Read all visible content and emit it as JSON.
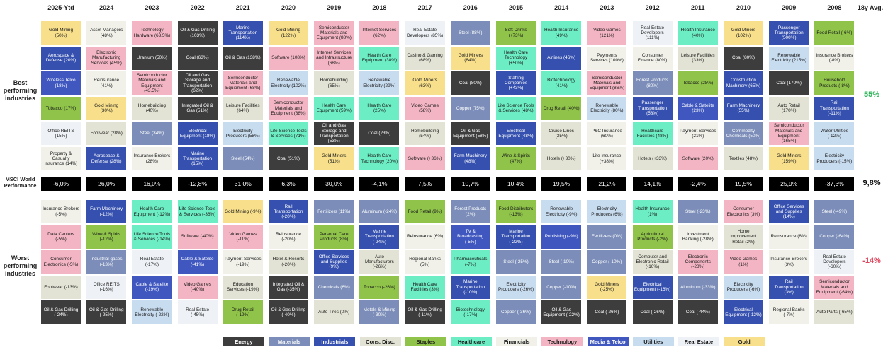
{
  "chart_data": {
    "type": "table",
    "columns": [
      "2025-Ytd",
      "2024",
      "2023",
      "2022",
      "2021",
      "2020",
      "2019",
      "2018",
      "2017",
      "2016",
      "2015",
      "2014",
      "2013",
      "2012",
      "2011",
      "2010",
      "2009",
      "2008"
    ],
    "avg_header": "18y Avg.",
    "row_labels": {
      "best": "Best performing industries",
      "msci": "MSCI World Performance",
      "worst": "Worst performing industries"
    },
    "averages": {
      "best": "55%",
      "msci": "9,8%",
      "worst": "-14%"
    },
    "colors": {
      "Energy": "#3d3d3d",
      "Materials": "#7b8db8",
      "Industrials": "#3550ae",
      "Cons. Disc.": "#e2e3d4",
      "Staples": "#8fc34a",
      "Healthcare": "#6dedc3",
      "Financials": "#f1f1ea",
      "Technology": "#f3b5c4",
      "Media & Telco": "#3f57bf",
      "Utilities": "#c8dcf0",
      "Real Estate": "#eef2f7",
      "Gold": "#f7df8b",
      "MSCI": "#000000"
    },
    "legend": [
      "Energy",
      "Materials",
      "Industrials",
      "Cons. Disc.",
      "Staples",
      "Healthcare",
      "Financials",
      "Technology",
      "Media & Telco",
      "Utilities",
      "Real Estate",
      "Gold"
    ],
    "msci": [
      "-6,0%",
      "26,0%",
      "16,0%",
      "-12,8%",
      "31,0%",
      "6,3%",
      "30,0%",
      "-4,1%",
      "7,5%",
      "10,7%",
      "10,4%",
      "19,5%",
      "21,2%",
      "14,1%",
      "-2,4%",
      "19,5%",
      "25,9%",
      "-37,3%"
    ],
    "best": [
      [
        [
          "Gold Mining (50%)",
          "Gold"
        ],
        [
          "Aerospace & Defense (20%)",
          "Industrials"
        ],
        [
          "Wireless Telco (18%)",
          "Media & Telco"
        ],
        [
          "Tobacco (17%)",
          "Staples"
        ],
        [
          "Office REITS (15%)",
          "Real Estate"
        ],
        [
          "Property & Casualty Insurance (14%)",
          "Financials"
        ]
      ],
      [
        [
          "Asset Managers (48%)",
          "Financials"
        ],
        [
          "Electronic Manufacturing Services (45%)",
          "Technology"
        ],
        [
          "Reinsurance (41%)",
          "Financials"
        ],
        [
          "Gold Mining (30%)",
          "Gold"
        ],
        [
          "Footwear (28%)",
          "Cons. Disc."
        ],
        [
          "Aerospace & Defense (28%)",
          "Industrials"
        ]
      ],
      [
        [
          "Technology Hardware (63.5%)",
          "Technology"
        ],
        [
          "Uranium (50%)",
          "Energy"
        ],
        [
          "Semiconductor Materials and Equipment (43.5%)",
          "Technology"
        ],
        [
          "Homebuilding (40%)",
          "Cons. Disc."
        ],
        [
          "Steel (34%)",
          "Materials"
        ],
        [
          "Insurance Brokers (28%)",
          "Financials"
        ]
      ],
      [
        [
          "Oil & Gas Drilling (103%)",
          "Energy"
        ],
        [
          "Coal (63%)",
          "Energy"
        ],
        [
          "Oil and Gas Storage and Transportation (62%)",
          "Energy"
        ],
        [
          "Integrated Oil & Gas (51%)",
          "Energy"
        ],
        [
          "Electrical Equipment (18%)",
          "Industrials"
        ],
        [
          "Marine Transportation (15%)",
          "Industrials"
        ]
      ],
      [
        [
          "Marine Transportation (114%)",
          "Industrials"
        ],
        [
          "Oil & Gas (138%)",
          "Energy"
        ],
        [
          "Semiconductor Materials and Equipment (68%)",
          "Technology"
        ],
        [
          "Leisure Facilities (64%)",
          "Cons. Disc."
        ],
        [
          "Electricity Producers (58%)",
          "Utilities"
        ],
        [
          "Steel (54%)",
          "Materials"
        ]
      ],
      [
        [
          "Gold Mining (122%)",
          "Gold"
        ],
        [
          "Software (108%)",
          "Technology"
        ],
        [
          "Renewable Electricity (102%)",
          "Utilities"
        ],
        [
          "Semiconductor Materials and Equipment (88%)",
          "Technology"
        ],
        [
          "Life Science Tools & Services (71%)",
          "Healthcare"
        ],
        [
          "Coal (51%)",
          "Energy"
        ]
      ],
      [
        [
          "Semiconductor Materials and Equipment (88%)",
          "Technology"
        ],
        [
          "Internet Services and Infrastructure (68%)",
          "Technology"
        ],
        [
          "Homebuilding (65%)",
          "Cons. Disc."
        ],
        [
          "Health Care Equipment (59%)",
          "Healthcare"
        ],
        [
          "Oil and Gas Storage and Transportation (53%)",
          "Energy"
        ],
        [
          "Gold Miners (51%)",
          "Gold"
        ]
      ],
      [
        [
          "Internet Services (62%)",
          "Technology"
        ],
        [
          "Health Care Equipment (38%)",
          "Healthcare"
        ],
        [
          "Renewable Electricity (29%)",
          "Utilities"
        ],
        [
          "Health Care (25%)",
          "Healthcare"
        ],
        [
          "Coal (23%)",
          "Energy"
        ],
        [
          "Health Care Technology (20%)",
          "Healthcare"
        ]
      ],
      [
        [
          "Real Estate Developers (85%)",
          "Real Estate"
        ],
        [
          "Casino & Gaming (68%)",
          "Cons. Disc."
        ],
        [
          "Gold Miners (63%)",
          "Gold"
        ],
        [
          "Video Games (58%)",
          "Technology"
        ],
        [
          "Homebuilding (54%)",
          "Cons. Disc."
        ],
        [
          "Software (+36%)",
          "Technology"
        ]
      ],
      [
        [
          "Steel (88%)",
          "Materials"
        ],
        [
          "Gold Miners (84%)",
          "Gold"
        ],
        [
          "Coal (80%)",
          "Energy"
        ],
        [
          "Copper (75%)",
          "Materials"
        ],
        [
          "Oil & Gas Equipment (58%)",
          "Energy"
        ],
        [
          "Farm Machinery (48%)",
          "Industrials"
        ]
      ],
      [
        [
          "Soft Drinks (+73%)",
          "Staples"
        ],
        [
          "Health Care Technology (+50%)",
          "Healthcare"
        ],
        [
          "Staffing Companies (+43%)",
          "Industrials"
        ],
        [
          "Life Science Tools & Services (48%)",
          "Healthcare"
        ],
        [
          "Electrical Equipment (48%)",
          "Industrials"
        ],
        [
          "Wine & Spirits (47%)",
          "Staples"
        ]
      ],
      [
        [
          "Health Insurance (49%)",
          "Healthcare"
        ],
        [
          "Airlines (46%)",
          "Industrials"
        ],
        [
          "Biotechnology (41%)",
          "Healthcare"
        ],
        [
          "Drug Retail (40%)",
          "Staples"
        ],
        [
          "Cruise Lines (35%)",
          "Cons. Disc."
        ],
        [
          "Hotels (+30%)",
          "Cons. Disc."
        ]
      ],
      [
        [
          "Video Games (121%)",
          "Technology"
        ],
        [
          "Payments Services (100%)",
          "Financials"
        ],
        [
          "Semiconductor Materials and Equipment (86%)",
          "Technology"
        ],
        [
          "Renewable Electricity (80%)",
          "Utilities"
        ],
        [
          "P&C Insurance (60%)",
          "Financials"
        ],
        [
          "Life Insurance (+38%)",
          "Financials"
        ]
      ],
      [
        [
          "Real Estate Developers (111%)",
          "Real Estate"
        ],
        [
          "Consumer Finance (80%)",
          "Financials"
        ],
        [
          "Forest Products (80%)",
          "Materials"
        ],
        [
          "Passenger Transportation (58%)",
          "Industrials"
        ],
        [
          "Healthcare Facilities (48%)",
          "Healthcare"
        ],
        [
          "Hotels (+33%)",
          "Cons. Disc."
        ]
      ],
      [
        [
          "Health Insurance (40%)",
          "Healthcare"
        ],
        [
          "Leisure Facilities (33%)",
          "Cons. Disc."
        ],
        [
          "Tobacco (28%)",
          "Staples"
        ],
        [
          "Cable & Satelite (23%)",
          "Media & Telco"
        ],
        [
          "Payment Services (21%)",
          "Financials"
        ],
        [
          "Software (20%)",
          "Technology"
        ]
      ],
      [
        [
          "Gold Miners (102%)",
          "Gold"
        ],
        [
          "Coal (80%)",
          "Energy"
        ],
        [
          "Construction Machinery (65%)",
          "Industrials"
        ],
        [
          "Farm Machinery (55%)",
          "Industrials"
        ],
        [
          "Commodity Chemicals (50%)",
          "Materials"
        ],
        [
          "Textiles (48%)",
          "Cons. Disc."
        ]
      ],
      [
        [
          "Passenger Transportation (500%)",
          "Industrials"
        ],
        [
          "Renewable Electricity (215%)",
          "Utilities"
        ],
        [
          "Coal (170%)",
          "Energy"
        ],
        [
          "Auto Retail (170%)",
          "Cons. Disc."
        ],
        [
          "Semiconductor Materials and Equipment (165%)",
          "Technology"
        ],
        [
          "Gold Miners (159%)",
          "Gold"
        ]
      ],
      [
        [
          "Food Retail (-6%)",
          "Staples"
        ],
        [
          "Insurance Brokers (-8%)",
          "Financials"
        ],
        [
          "Household Products (-8%)",
          "Staples"
        ],
        [
          "Rail Transportation (-11%)",
          "Industrials"
        ],
        [
          "Water Utilities (-12%)",
          "Utilities"
        ],
        [
          "Electricity Producers (-15%)",
          "Utilities"
        ]
      ]
    ],
    "worst": [
      [
        [
          "Insurance Brokers (-5%)",
          "Financials"
        ],
        [
          "Data Centers (-5%)",
          "Technology"
        ],
        [
          "Consumer Electronics (-5%)",
          "Technology"
        ],
        [
          "Footwear (-13%)",
          "Cons. Disc."
        ],
        [
          "Oil & Gas Drilling (-24%)",
          "Energy"
        ]
      ],
      [
        [
          "Farm Machinery (-12%)",
          "Industrials"
        ],
        [
          "Wine & Spirits (-12%)",
          "Staples"
        ],
        [
          "Industrial gases (-13%)",
          "Materials"
        ],
        [
          "Office REITS (-16%)",
          "Real Estate"
        ],
        [
          "Oil & Gas Drilling (-25%)",
          "Energy"
        ]
      ],
      [
        [
          "Health Care Equipment (-12%)",
          "Healthcare"
        ],
        [
          "Life Science Tools & Services (-14%)",
          "Healthcare"
        ],
        [
          "Real Estate (-17%)",
          "Real Estate"
        ],
        [
          "Cable & Satelite (-19%)",
          "Media & Telco"
        ],
        [
          "Renewable Electricity (-22%)",
          "Utilities"
        ]
      ],
      [
        [
          "Life Science Tools & Services (-36%)",
          "Healthcare"
        ],
        [
          "Software (-40%)",
          "Technology"
        ],
        [
          "Cable & Satelite (-41%)",
          "Media & Telco"
        ],
        [
          "Video Games (-40%)",
          "Technology"
        ],
        [
          "Real Estate (-45%)",
          "Real Estate"
        ]
      ],
      [
        [
          "Gold Mining (-9%)",
          "Gold"
        ],
        [
          "Video Games (-11%)",
          "Technology"
        ],
        [
          "Payment Services (-19%)",
          "Financials"
        ],
        [
          "Education Services (-19%)",
          "Cons. Disc."
        ],
        [
          "Drug Retail (-19%)",
          "Staples"
        ]
      ],
      [
        [
          "Rail Transportation (-20%)",
          "Industrials"
        ],
        [
          "Reinsurance (-20%)",
          "Financials"
        ],
        [
          "Hotel & Resorts (-20%)",
          "Cons. Disc."
        ],
        [
          "Integrated Oil & Gas (-35%)",
          "Energy"
        ],
        [
          "Oil & Gas Drilling (-40%)",
          "Energy"
        ]
      ],
      [
        [
          "Fertilizers (11%)",
          "Materials"
        ],
        [
          "Personal Care Products (8%)",
          "Staples"
        ],
        [
          "Office Services and Supplies (9%)",
          "Industrials"
        ],
        [
          "Chemicals (6%)",
          "Materials"
        ],
        [
          "Auto Tires (0%)",
          "Cons. Disc."
        ]
      ],
      [
        [
          "Aluminum (-24%)",
          "Materials"
        ],
        [
          "Marine Transportation (-24%)",
          "Industrials"
        ],
        [
          "Auto Manufacturers (-26%)",
          "Cons. Disc."
        ],
        [
          "Tobacco (-26%)",
          "Staples"
        ],
        [
          "Metals & Mining (-30%)",
          "Materials"
        ]
      ],
      [
        [
          "Food Retail (9%)",
          "Staples"
        ],
        [
          "Reinsurance (6%)",
          "Financials"
        ],
        [
          "Regional Banks (5%)",
          "Financials"
        ],
        [
          "Health Care Facilities (3%)",
          "Healthcare"
        ],
        [
          "Oil & Gas Drilling (-11%)",
          "Energy"
        ]
      ],
      [
        [
          "Forest Products (2%)",
          "Materials"
        ],
        [
          "TV & Broadcasting (-5%)",
          "Media & Telco"
        ],
        [
          "Pharmaceuticals (-7%)",
          "Healthcare"
        ],
        [
          "Marine Transportation (-10%)",
          "Industrials"
        ],
        [
          "Biotechnology (-17%)",
          "Healthcare"
        ]
      ],
      [
        [
          "Food Distributors (-13%)",
          "Staples"
        ],
        [
          "Marine Transportation (-22%)",
          "Industrials"
        ],
        [
          "Steel (-25%)",
          "Materials"
        ],
        [
          "Electricity Producers (-26%)",
          "Utilities"
        ],
        [
          "Copper (-36%)",
          "Materials"
        ]
      ],
      [
        [
          "Renewable Electricity (-9%)",
          "Utilities"
        ],
        [
          "Publishing (-9%)",
          "Media & Telco"
        ],
        [
          "Steel (-10%)",
          "Materials"
        ],
        [
          "Copper (-10%)",
          "Materials"
        ],
        [
          "Oil & Gas Equipment (-22%)",
          "Energy"
        ]
      ],
      [
        [
          "Electricity Producers (6%)",
          "Utilities"
        ],
        [
          "Fertilizers (0%)",
          "Materials"
        ],
        [
          "Copper (-10%)",
          "Materials"
        ],
        [
          "Gold Miners (-25%)",
          "Gold"
        ],
        [
          "Coal (-26%)",
          "Energy"
        ]
      ],
      [
        [
          "Health Insurance (1%)",
          "Healthcare"
        ],
        [
          "Agricultural Products (-2%)",
          "Staples"
        ],
        [
          "Computer and Electronic Retail (-16%)",
          "Cons. Disc."
        ],
        [
          "Electrical Equipment (-16%)",
          "Industrials"
        ],
        [
          "Coal (-26%)",
          "Energy"
        ]
      ],
      [
        [
          "Steel (-23%)",
          "Materials"
        ],
        [
          "Investment Banking (-28%)",
          "Financials"
        ],
        [
          "Electronic Components (-28%)",
          "Technology"
        ],
        [
          "Aluminum (-33%)",
          "Materials"
        ],
        [
          "Coal (-44%)",
          "Energy"
        ]
      ],
      [
        [
          "Consumer Electronics (3%)",
          "Technology"
        ],
        [
          "Home Improvement Retail (2%)",
          "Cons. Disc."
        ],
        [
          "Video Games (1%)",
          "Technology"
        ],
        [
          "Electricity Producers (-6%)",
          "Utilities"
        ],
        [
          "Electrical Equipment (-12%)",
          "Industrials"
        ]
      ],
      [
        [
          "Office Services and Supplies (14%)",
          "Industrials"
        ],
        [
          "Reinsurance (8%)",
          "Financials"
        ],
        [
          "Insurance Brokers (3%)",
          "Financials"
        ],
        [
          "Rail Transportation (3%)",
          "Industrials"
        ],
        [
          "Regional Banks (-7%)",
          "Financials"
        ]
      ],
      [
        [
          "Steel (-49%)",
          "Materials"
        ],
        [
          "Copper (-64%)",
          "Materials"
        ],
        [
          "Real Estate Developers (-60%)",
          "Real Estate"
        ],
        [
          "Semiconductor Materials and Equipment (-64%)",
          "Technology"
        ],
        [
          "Auto Parts (-65%)",
          "Cons. Disc."
        ]
      ]
    ]
  }
}
